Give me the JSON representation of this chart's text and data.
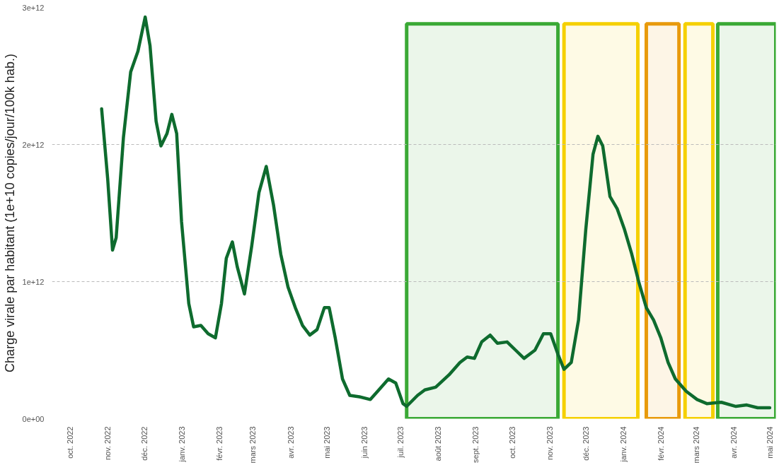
{
  "chart_data": {
    "type": "line",
    "ylabel": "Charge virale par habitant (1e+10 copies/jour/100k hab.)",
    "xlim": [
      "2022-09-16",
      "2024-05-06"
    ],
    "ylim": [
      0,
      3000000000000
    ],
    "xticks": [
      {
        "value": "2022-10-01",
        "label": "oct. 2022"
      },
      {
        "value": "2022-11-01",
        "label": "nov. 2022"
      },
      {
        "value": "2022-12-01",
        "label": "déc. 2022"
      },
      {
        "value": "2023-01-01",
        "label": "janv. 2023"
      },
      {
        "value": "2023-02-01",
        "label": "févr. 2023"
      },
      {
        "value": "2023-03-01",
        "label": "mars 2023"
      },
      {
        "value": "2023-04-01",
        "label": "avr. 2023"
      },
      {
        "value": "2023-05-01",
        "label": "mai 2023"
      },
      {
        "value": "2023-06-01",
        "label": "juin 2023"
      },
      {
        "value": "2023-07-01",
        "label": "juil. 2023"
      },
      {
        "value": "2023-08-01",
        "label": "août 2023"
      },
      {
        "value": "2023-09-01",
        "label": "sept. 2023"
      },
      {
        "value": "2023-10-01",
        "label": "oct. 2023"
      },
      {
        "value": "2023-11-01",
        "label": "nov. 2023"
      },
      {
        "value": "2023-12-01",
        "label": "déc. 2023"
      },
      {
        "value": "2024-01-01",
        "label": "janv. 2024"
      },
      {
        "value": "2024-02-01",
        "label": "févr. 2024"
      },
      {
        "value": "2024-03-01",
        "label": "mars 2024"
      },
      {
        "value": "2024-04-01",
        "label": "avr. 2024"
      },
      {
        "value": "2024-05-01",
        "label": "mai 2024"
      }
    ],
    "yticks": [
      {
        "value": 0,
        "label": "0e+00"
      },
      {
        "value": 1000000000000,
        "label": "1e+12"
      },
      {
        "value": 2000000000000,
        "label": "2e+12"
      },
      {
        "value": 3000000000000,
        "label": "3e+12"
      }
    ],
    "grid": "y",
    "line_style": "solid",
    "x": [
      "2022-10-27",
      "2022-11-01",
      "2022-11-05",
      "2022-11-08",
      "2022-11-14",
      "2022-11-20",
      "2022-11-26",
      "2022-12-02",
      "2022-12-06",
      "2022-12-11",
      "2022-12-15",
      "2022-12-20",
      "2022-12-24",
      "2022-12-28",
      "2023-01-01",
      "2023-01-07",
      "2023-01-11",
      "2023-01-17",
      "2023-01-23",
      "2023-01-29",
      "2023-02-03",
      "2023-02-07",
      "2023-02-12",
      "2023-02-16",
      "2023-02-22",
      "2023-02-28",
      "2023-03-06",
      "2023-03-12",
      "2023-03-18",
      "2023-03-24",
      "2023-03-30",
      "2023-04-05",
      "2023-04-11",
      "2023-04-17",
      "2023-04-23",
      "2023-04-29",
      "2023-05-03",
      "2023-05-08",
      "2023-05-14",
      "2023-05-20",
      "2023-05-28",
      "2023-06-06",
      "2023-06-12",
      "2023-06-21",
      "2023-06-27",
      "2023-07-03",
      "2023-07-06",
      "2023-07-15",
      "2023-07-21",
      "2023-07-30",
      "2023-08-10",
      "2023-08-19",
      "2023-08-25",
      "2023-08-31",
      "2023-09-06",
      "2023-09-13",
      "2023-09-19",
      "2023-09-27",
      "2023-10-04",
      "2023-10-11",
      "2023-10-20",
      "2023-10-27",
      "2023-11-02",
      "2023-11-08",
      "2023-11-13",
      "2023-11-19",
      "2023-11-25",
      "2023-12-01",
      "2023-12-07",
      "2023-12-11",
      "2023-12-15",
      "2023-12-21",
      "2023-12-27",
      "2024-01-02",
      "2024-01-08",
      "2024-01-14",
      "2024-01-20",
      "2024-01-26",
      "2024-02-01",
      "2024-02-07",
      "2024-02-13",
      "2024-02-22",
      "2024-03-02",
      "2024-03-10",
      "2024-03-22",
      "2024-04-03",
      "2024-04-12",
      "2024-04-21",
      "2024-05-01"
    ],
    "series": [
      {
        "color": "#0e6b2e",
        "values": [
          2260000000000,
          1750000000000,
          1230000000000,
          1320000000000,
          2050000000000,
          2530000000000,
          2680000000000,
          2930000000000,
          2720000000000,
          2170000000000,
          1990000000000,
          2080000000000,
          2220000000000,
          2080000000000,
          1440000000000,
          840000000000,
          670000000000,
          680000000000,
          620000000000,
          590000000000,
          840000000000,
          1170000000000,
          1290000000000,
          1110000000000,
          910000000000,
          1260000000000,
          1650000000000,
          1840000000000,
          1560000000000,
          1200000000000,
          960000000000,
          810000000000,
          680000000000,
          610000000000,
          650000000000,
          810000000000,
          810000000000,
          590000000000,
          290000000000,
          170000000000,
          160000000000,
          140000000000,
          200000000000,
          290000000000,
          260000000000,
          110000000000,
          90000000000,
          170000000000,
          210000000000,
          230000000000,
          320000000000,
          410000000000,
          450000000000,
          440000000000,
          560000000000,
          610000000000,
          550000000000,
          560000000000,
          500000000000,
          440000000000,
          500000000000,
          620000000000,
          620000000000,
          470000000000,
          360000000000,
          410000000000,
          720000000000,
          1380000000000,
          1930000000000,
          2060000000000,
          1990000000000,
          1620000000000,
          1530000000000,
          1380000000000,
          1200000000000,
          990000000000,
          810000000000,
          720000000000,
          590000000000,
          410000000000,
          290000000000,
          200000000000,
          140000000000,
          110000000000,
          120000000000,
          90000000000,
          100000000000,
          80000000000,
          80000000000
        ]
      }
    ],
    "bands": [
      {
        "axis": "x",
        "from": "2023-07-06",
        "to": "2023-11-08",
        "color": "#3aa935"
      },
      {
        "axis": "x",
        "from": "2023-11-13",
        "to": "2024-01-13",
        "color": "#f5d000"
      },
      {
        "axis": "x",
        "from": "2024-01-20",
        "to": "2024-02-16",
        "color": "#e89a0c"
      },
      {
        "axis": "x",
        "from": "2024-02-21",
        "to": "2024-03-15",
        "color": "#f5d000"
      },
      {
        "axis": "x",
        "from": "2024-03-19",
        "to": "2024-05-06",
        "color": "#3aa935"
      }
    ]
  }
}
